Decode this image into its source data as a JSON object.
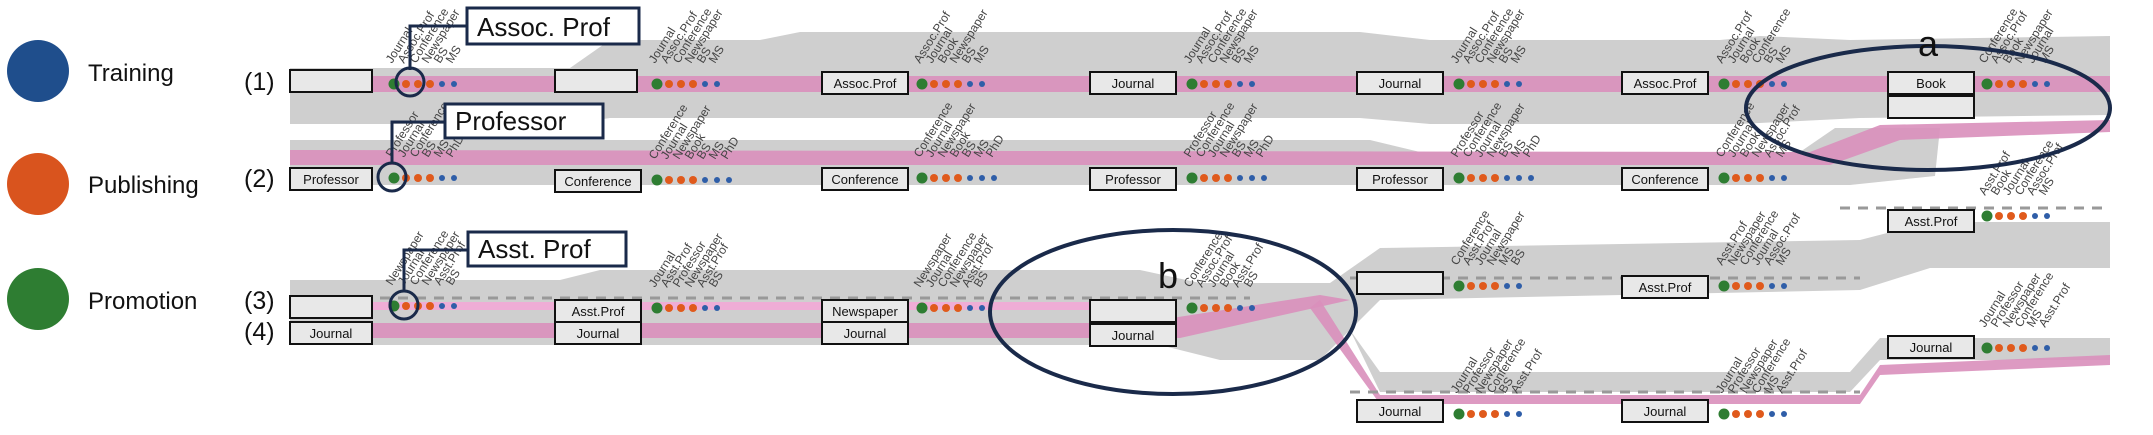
{
  "legend": [
    {
      "label": "Training",
      "color": "#1f4e8c"
    },
    {
      "label": "Publishing",
      "color": "#d9541e"
    },
    {
      "label": "Promotion",
      "color": "#2e7d32"
    }
  ],
  "row_labels": [
    "(1)",
    "(2)",
    "(3)",
    "(4)"
  ],
  "callouts": {
    "assoc": "Assoc. Prof",
    "prof": "Professor",
    "asst": "Asst. Prof",
    "a": "a",
    "b": "b"
  },
  "colors": {
    "band": "#cfcfcf",
    "stream": "#d98fbb",
    "stream_light": "#f2a9d6",
    "dot_red": "#e05a1c",
    "dot_green": "#2e7d32",
    "dot_blue": "#2f5ea8",
    "outline": "#1a2a4a"
  },
  "rows": {
    "r1": {
      "boxes": [
        "",
        "",
        "Assoc.Prof",
        "Journal",
        "Journal",
        "Assoc.Prof",
        "Book",
        ""
      ]
    },
    "r2": {
      "boxes": [
        "Professor",
        "Conference",
        "Conference",
        "Professor",
        "Professor",
        "Conference"
      ]
    },
    "r3": {
      "boxes": [
        "",
        "Asst.Prof",
        "Newspaper",
        ""
      ]
    },
    "r4": {
      "boxes": [
        "Journal",
        "Journal",
        "Journal",
        "Journal"
      ]
    },
    "branches": {
      "boxes": [
        "Asst.Prof",
        "",
        "Asst.Prof",
        "Journal",
        "Journal",
        "Journal"
      ]
    }
  },
  "tick_groups": {
    "t1": [
      "Journal",
      "Assoc.Prof",
      "Conference",
      "Newspaper",
      "BS",
      "MS"
    ],
    "t2": [
      "Journal",
      "Assoc.Prof",
      "Conference",
      "Newspaper",
      "BS",
      "MS"
    ],
    "t3": [
      "Assoc.Prof",
      "Journal",
      "Book",
      "Newspaper",
      "BS",
      "MS"
    ],
    "t4": [
      "Journal",
      "Assoc.Prof",
      "Conference",
      "Newspaper",
      "BS",
      "MS"
    ],
    "t5": [
      "Journal",
      "Assoc.Prof",
      "Conference",
      "Newspaper",
      "BS",
      "MS"
    ],
    "t6": [
      "Assoc.Prof",
      "Journal",
      "Book",
      "Conference",
      "BS",
      "MS"
    ],
    "t7": [
      "Conference",
      "Assoc.Prof",
      "Book",
      "Newspaper",
      "Journal",
      "MS"
    ],
    "t8": [
      "Professor",
      "Journal",
      "Conference",
      "BS",
      "MS",
      "PhD"
    ],
    "t9": [
      "Conference",
      "Journal",
      "Newspaper",
      "Book",
      "BS",
      "MS",
      "PhD"
    ],
    "t10": [
      "Conference",
      "Journal",
      "Newspaper",
      "Book",
      "BS",
      "MS",
      "PhD"
    ],
    "t11": [
      "Professor",
      "Conference",
      "Journal",
      "Newspaper",
      "BS",
      "MS",
      "PhD"
    ],
    "t12": [
      "Professor",
      "Conference",
      "Journal",
      "Newspaper",
      "BS",
      "MS",
      "PhD"
    ],
    "t13": [
      "Conference",
      "Journal",
      "Book",
      "Newspaper",
      "Assoc.Prof",
      "MS"
    ],
    "t14": [
      "Asst.Prof",
      "Book",
      "Journal",
      "Conference",
      "Assoc.Prof",
      "MS"
    ],
    "t15": [
      "Newspaper",
      "Journal",
      "Conference",
      "Newspaper",
      "Asst.Prof",
      "BS"
    ],
    "t16": [
      "Journal",
      "Asst.Prof",
      "Professor",
      "Newspaper",
      "Asst.Prof",
      "BS"
    ],
    "t17": [
      "Newspaper",
      "Journal",
      "Conference",
      "Newspaper",
      "Asst.Prof",
      "BS"
    ],
    "t18": [
      "Conference",
      "Assoc.Prof",
      "Journal",
      "Book",
      "Asst.Prof",
      "BS"
    ],
    "t19": [
      "Conference",
      "Asst.Prof",
      "Journal",
      "Newspaper",
      "MS",
      "BS"
    ],
    "t20": [
      "Asst.Prof",
      "Newspaper",
      "Conference",
      "Journal",
      "Assoc.Prof",
      "MS"
    ],
    "t21": [
      "Journal",
      "Professor",
      "Newspaper",
      "Conference",
      "BS",
      "Asst.Prof"
    ],
    "t22": [
      "Journal",
      "Professor",
      "Newspaper",
      "Conference",
      "MS",
      "Asst.Prof"
    ],
    "t23": [
      "Journal",
      "Professor",
      "Newspaper",
      "Conference",
      "MS",
      "Asst.Prof"
    ],
    "t24": [
      "Asst.Prof",
      "Journal",
      "Conference",
      "Journal",
      "Assoc.Prof",
      "MS"
    ]
  }
}
